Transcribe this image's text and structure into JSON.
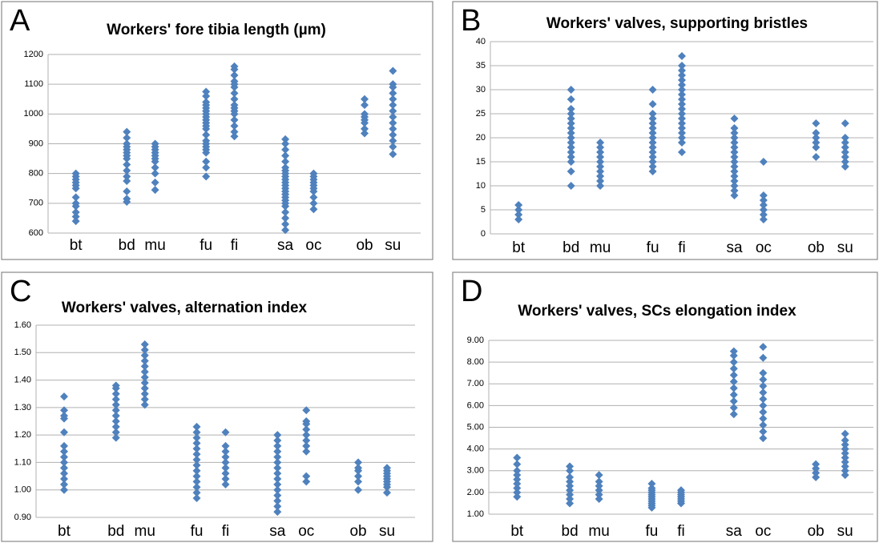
{
  "chart_data": [
    {
      "type": "strip",
      "label": "A",
      "title": "Workers' fore tibia length (µm)",
      "color": "#4f81bd",
      "grid": true,
      "categories": [
        "bt",
        null,
        "bd",
        "mu",
        null,
        "fu",
        "fi",
        null,
        "sa",
        "oc",
        null,
        "ob",
        "su"
      ],
      "values": [
        [
          640,
          655,
          670,
          690,
          700,
          720,
          750,
          760,
          770,
          780,
          790,
          800
        ],
        null,
        [
          705,
          715,
          740,
          775,
          790,
          810,
          830,
          850,
          860,
          870,
          880,
          890,
          900,
          920,
          940
        ],
        [
          745,
          770,
          800,
          820,
          840,
          850,
          860,
          870,
          880,
          890,
          900
        ],
        null,
        [
          790,
          820,
          840,
          870,
          880,
          890,
          900,
          910,
          930,
          950,
          960,
          970,
          980,
          990,
          1000,
          1010,
          1020,
          1030,
          1040,
          1060,
          1075
        ],
        [
          925,
          940,
          960,
          980,
          1000,
          1010,
          1020,
          1030,
          1050,
          1070,
          1090,
          1100,
          1110,
          1130,
          1150,
          1160
        ],
        null,
        [
          610,
          630,
          650,
          670,
          690,
          700,
          710,
          720,
          730,
          740,
          750,
          760,
          770,
          780,
          790,
          800,
          810,
          820,
          840,
          860,
          880,
          900,
          915
        ],
        [
          680,
          700,
          720,
          740,
          750,
          760,
          770,
          780,
          790,
          800
        ],
        null,
        [
          935,
          950,
          970,
          980,
          990,
          1000,
          1030,
          1050
        ],
        [
          865,
          890,
          910,
          930,
          950,
          970,
          990,
          1010,
          1030,
          1050,
          1070,
          1090,
          1100,
          1145
        ]
      ],
      "ylim": [
        600,
        1200
      ],
      "yticks": [
        600,
        700,
        800,
        900,
        1000,
        1100,
        1200
      ]
    },
    {
      "type": "strip",
      "label": "B",
      "title": "Workers' valves, supporting bristles",
      "color": "#4f81bd",
      "grid": true,
      "categories": [
        "bt",
        null,
        "bd",
        "mu",
        null,
        "fu",
        "fi",
        null,
        "sa",
        "oc",
        null,
        "ob",
        "su"
      ],
      "values": [
        [
          3,
          4,
          5,
          6
        ],
        null,
        [
          10,
          13,
          15,
          16,
          17,
          18,
          19,
          20,
          21,
          22,
          23,
          24,
          25,
          26,
          28,
          30
        ],
        [
          10,
          11,
          12,
          13,
          14,
          15,
          16,
          17,
          18,
          19
        ],
        null,
        [
          13,
          14,
          15,
          16,
          17,
          18,
          19,
          20,
          21,
          22,
          23,
          24,
          25,
          27,
          30
        ],
        [
          17,
          19,
          20,
          21,
          22,
          23,
          24,
          25,
          26,
          27,
          28,
          29,
          30,
          31,
          32,
          33,
          34,
          35,
          37
        ],
        null,
        [
          8,
          9,
          10,
          11,
          12,
          13,
          14,
          15,
          16,
          17,
          18,
          19,
          20,
          21,
          22,
          24
        ],
        [
          3,
          4,
          5,
          6,
          7,
          8,
          15
        ],
        null,
        [
          16,
          18,
          19,
          20,
          21,
          23
        ],
        [
          14,
          15,
          16,
          17,
          18,
          19,
          20,
          23
        ]
      ],
      "ylim": [
        0,
        40
      ],
      "yticks": [
        0,
        5,
        10,
        15,
        20,
        25,
        30,
        35,
        40
      ]
    },
    {
      "type": "strip",
      "label": "C",
      "title": "Workers' valves, alternation index",
      "color": "#4f81bd",
      "grid": true,
      "categories": [
        "bt",
        null,
        "bd",
        "mu",
        null,
        "fu",
        "fi",
        null,
        "sa",
        "oc",
        null,
        "ob",
        "su"
      ],
      "values": [
        [
          1.0,
          1.02,
          1.04,
          1.06,
          1.08,
          1.1,
          1.12,
          1.14,
          1.16,
          1.21,
          1.26,
          1.27,
          1.29,
          1.34
        ],
        null,
        [
          1.19,
          1.21,
          1.23,
          1.25,
          1.27,
          1.29,
          1.31,
          1.33,
          1.35,
          1.37,
          1.38
        ],
        [
          1.31,
          1.33,
          1.35,
          1.37,
          1.39,
          1.41,
          1.43,
          1.45,
          1.47,
          1.49,
          1.51,
          1.53
        ],
        null,
        [
          0.97,
          0.99,
          1.01,
          1.03,
          1.05,
          1.07,
          1.09,
          1.11,
          1.13,
          1.15,
          1.17,
          1.19,
          1.21,
          1.23
        ],
        [
          1.02,
          1.04,
          1.06,
          1.08,
          1.1,
          1.12,
          1.14,
          1.16,
          1.21
        ],
        null,
        [
          0.92,
          0.94,
          0.96,
          0.98,
          1.0,
          1.02,
          1.04,
          1.06,
          1.08,
          1.1,
          1.12,
          1.14,
          1.16,
          1.18,
          1.2
        ],
        [
          1.03,
          1.05,
          1.14,
          1.16,
          1.18,
          1.2,
          1.22,
          1.24,
          1.25,
          1.29
        ],
        null,
        [
          1.0,
          1.03,
          1.05,
          1.07,
          1.08,
          1.1
        ],
        [
          0.99,
          1.01,
          1.02,
          1.03,
          1.04,
          1.05,
          1.06,
          1.07,
          1.08
        ]
      ],
      "ylim": [
        0.9,
        1.6
      ],
      "yticks": [
        {
          "value": 0.9,
          "label": "0.90"
        },
        {
          "value": 1.0,
          "label": "1.00"
        },
        {
          "value": 1.1,
          "label": "1.10"
        },
        {
          "value": 1.2,
          "label": "1.20"
        },
        {
          "value": 1.3,
          "label": "1.30"
        },
        {
          "value": 1.4,
          "label": "1.40"
        },
        {
          "value": 1.5,
          "label": "1.50"
        },
        {
          "value": 1.6,
          "label": "1.60"
        }
      ]
    },
    {
      "type": "strip",
      "label": "D",
      "title": "Workers' valves, SCs elongation index",
      "color": "#4f81bd",
      "grid": true,
      "categories": [
        "bt",
        null,
        "bd",
        "mu",
        null,
        "fu",
        "fi",
        null,
        "sa",
        "oc",
        null,
        "ob",
        "su"
      ],
      "values": [
        [
          1.8,
          2.0,
          2.2,
          2.4,
          2.6,
          2.8,
          3.0,
          3.3,
          3.6
        ],
        null,
        [
          1.5,
          1.7,
          1.9,
          2.1,
          2.3,
          2.5,
          2.7,
          3.0,
          3.2
        ],
        [
          1.7,
          1.9,
          2.1,
          2.3,
          2.5,
          2.8
        ],
        null,
        [
          1.3,
          1.4,
          1.5,
          1.6,
          1.7,
          1.8,
          1.9,
          2.0,
          2.1,
          2.2,
          2.4
        ],
        [
          1.5,
          1.6,
          1.7,
          1.8,
          1.9,
          2.0,
          2.1
        ],
        null,
        [
          5.6,
          5.9,
          6.2,
          6.5,
          6.8,
          7.1,
          7.4,
          7.7,
          8.0,
          8.3,
          8.5
        ],
        [
          4.5,
          4.8,
          5.1,
          5.4,
          5.7,
          6.0,
          6.3,
          6.6,
          6.9,
          7.2,
          7.5,
          8.2,
          8.7
        ],
        null,
        [
          2.7,
          2.9,
          3.1,
          3.3
        ],
        [
          2.8,
          3.0,
          3.2,
          3.4,
          3.6,
          3.8,
          4.0,
          4.2,
          4.4,
          4.7
        ]
      ],
      "ylim": [
        1,
        9
      ],
      "yticks": [
        {
          "value": 1,
          "label": "1.00"
        },
        {
          "value": 2,
          "label": "2.00"
        },
        {
          "value": 3,
          "label": "3.00"
        },
        {
          "value": 4,
          "label": "4.00"
        },
        {
          "value": 5,
          "label": "5.00"
        },
        {
          "value": 6,
          "label": "6.00"
        },
        {
          "value": 7,
          "label": "7.00"
        },
        {
          "value": 8,
          "label": "8.00"
        },
        {
          "value": 9,
          "label": "9.00"
        }
      ]
    }
  ]
}
